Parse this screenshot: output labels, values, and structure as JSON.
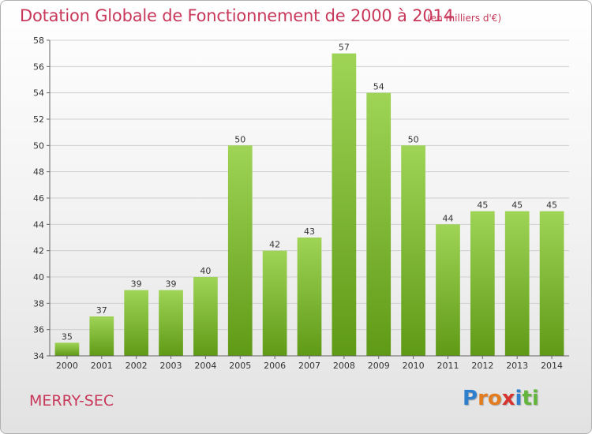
{
  "header": {
    "title": "Dotation Globale de Fonctionnement de 2000 à 2014",
    "unit": "(en milliers d'€)"
  },
  "footer": {
    "commune": "MERRY-SEC",
    "logo_letters": [
      "P",
      "r",
      "o",
      "x",
      "i",
      "t",
      "i"
    ],
    "logo_colors": [
      "#2f7fcf",
      "#e37c1f",
      "#e37c1f",
      "#d8342f",
      "#2f7fcf",
      "#63b53c",
      "#63b53c"
    ]
  },
  "colors": {
    "accent": "#c8385a",
    "bar_top": "#9fd456",
    "bar_bottom": "#5f9a16",
    "grid": "#cfcfcf"
  },
  "chart_data": {
    "type": "bar",
    "categories": [
      "2000",
      "2001",
      "2002",
      "2003",
      "2004",
      "2005",
      "2006",
      "2007",
      "2008",
      "2009",
      "2010",
      "2011",
      "2012",
      "2013",
      "2014"
    ],
    "values": [
      35,
      37,
      39,
      39,
      40,
      50,
      42,
      43,
      57,
      54,
      50,
      44,
      45,
      45,
      45
    ],
    "data_labels": [
      "35",
      "37",
      "39",
      "39",
      "40",
      "50",
      "42",
      "43",
      "57",
      "54",
      "50",
      "44",
      "45",
      "45",
      "45"
    ],
    "yticks": [
      "34",
      "36",
      "38",
      "40",
      "42",
      "44",
      "46",
      "48",
      "50",
      "52",
      "54",
      "56",
      "58"
    ],
    "ylim": [
      34,
      58
    ],
    "grid": true
  }
}
